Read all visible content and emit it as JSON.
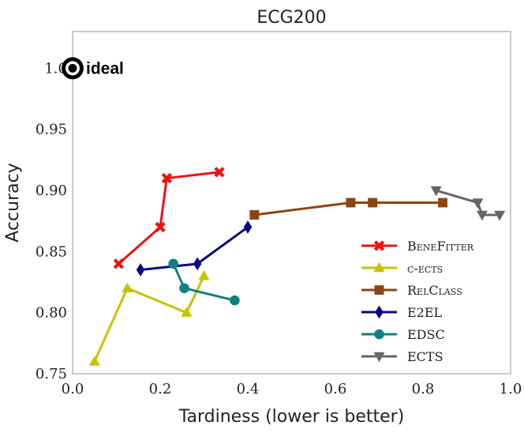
{
  "chart_data": {
    "type": "line",
    "title": "ECG200",
    "xlabel": "Tardiness (lower is better)",
    "ylabel": "Accuracy",
    "xlim": [
      0.0,
      1.0
    ],
    "ylim": [
      0.75,
      1.03
    ],
    "xticks": [
      0.0,
      0.2,
      0.4,
      0.6,
      0.8,
      1.0
    ],
    "xtick_labels": [
      "0.0",
      "0.2",
      "0.4",
      "0.6",
      "0.8",
      "1.0"
    ],
    "yticks": [
      0.75,
      0.8,
      0.85,
      0.9,
      0.95,
      1.0
    ],
    "ytick_labels": [
      "0.75",
      "0.80",
      "0.85",
      "0.90",
      "0.95",
      "1.0"
    ],
    "grid": false,
    "legend_position": "lower-right",
    "ideal": {
      "x": 0.0,
      "y": 1.0,
      "label": "ideal"
    },
    "series": [
      {
        "name": "BeneFitter",
        "color": "#ee1111",
        "marker": "x",
        "x": [
          0.105,
          0.2,
          0.215,
          0.335
        ],
        "y": [
          0.84,
          0.87,
          0.91,
          0.915
        ]
      },
      {
        "name": "c-ects",
        "color": "#c8c200",
        "marker": "triangle-up",
        "x": [
          0.05,
          0.125,
          0.26,
          0.3
        ],
        "y": [
          0.76,
          0.82,
          0.8,
          0.83
        ]
      },
      {
        "name": "RelClass",
        "color": "#8b4513",
        "marker": "square",
        "x": [
          0.415,
          0.635,
          0.685,
          0.845
        ],
        "y": [
          0.88,
          0.89,
          0.89,
          0.89
        ]
      },
      {
        "name": "E2EL",
        "color": "#0a0a80",
        "marker": "diamond",
        "x": [
          0.155,
          0.285,
          0.4
        ],
        "y": [
          0.835,
          0.84,
          0.87
        ]
      },
      {
        "name": "EDSC",
        "color": "#108080",
        "marker": "circle",
        "x": [
          0.23,
          0.255,
          0.37
        ],
        "y": [
          0.84,
          0.82,
          0.81
        ]
      },
      {
        "name": "ECTS",
        "color": "#666666",
        "marker": "triangle-down",
        "x": [
          0.83,
          0.925,
          0.935,
          0.975
        ],
        "y": [
          0.9,
          0.89,
          0.88,
          0.88
        ]
      }
    ]
  }
}
